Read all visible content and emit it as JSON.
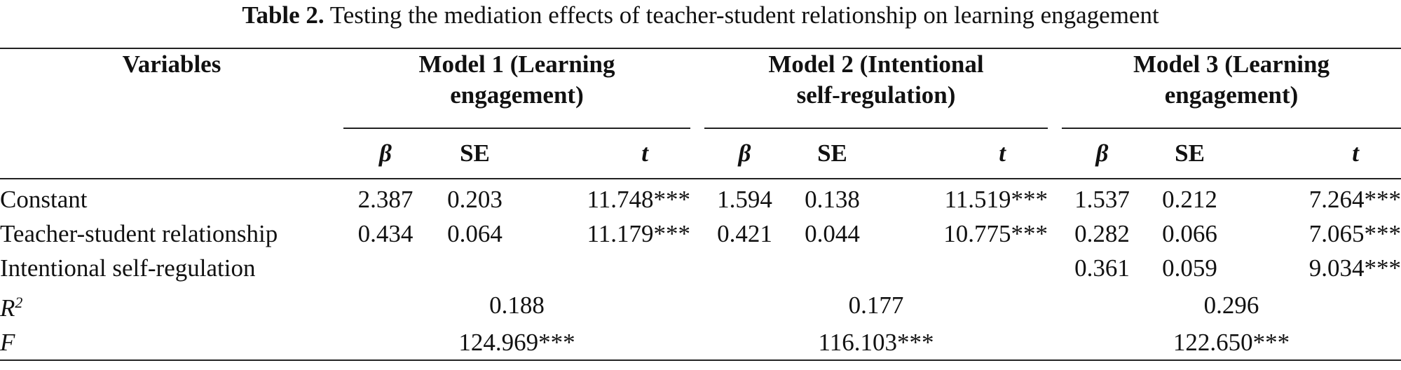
{
  "caption": {
    "label": "Table 2.",
    "text": "Testing the mediation effects of teacher-student relationship on learning engagement"
  },
  "header": {
    "variables": "Variables",
    "models": [
      {
        "line1": "Model 1 (Learning",
        "line2": "engagement)"
      },
      {
        "line1": "Model 2 (Intentional",
        "line2": "self-regulation)"
      },
      {
        "line1": "Model 3 (Learning",
        "line2": "engagement)"
      }
    ],
    "sub": {
      "beta": "β",
      "se": "SE",
      "t": "t"
    }
  },
  "rows": [
    {
      "label": "Constant",
      "m1": [
        "2.387",
        "0.203",
        "11.748***"
      ],
      "m2": [
        "1.594",
        "0.138",
        "11.519***"
      ],
      "m3": [
        "1.537",
        "0.212",
        "7.264***"
      ]
    },
    {
      "label": "Teacher-student relationship",
      "m1": [
        "0.434",
        "0.064",
        "11.179***"
      ],
      "m2": [
        "0.421",
        "0.044",
        "10.775***"
      ],
      "m3": [
        "0.282",
        "0.066",
        "7.065***"
      ]
    },
    {
      "label": "Intentional self-regulation",
      "m1": [
        "",
        "",
        ""
      ],
      "m2": [
        "",
        "",
        ""
      ],
      "m3": [
        "0.361",
        "0.059",
        "9.034***"
      ]
    }
  ],
  "fit": {
    "r2": {
      "label": "R",
      "sup": "2",
      "values": [
        "0.188",
        "0.177",
        "0.296"
      ]
    },
    "f": {
      "label": "F",
      "values": [
        "124.969***",
        "116.103***",
        "122.650***"
      ]
    }
  }
}
